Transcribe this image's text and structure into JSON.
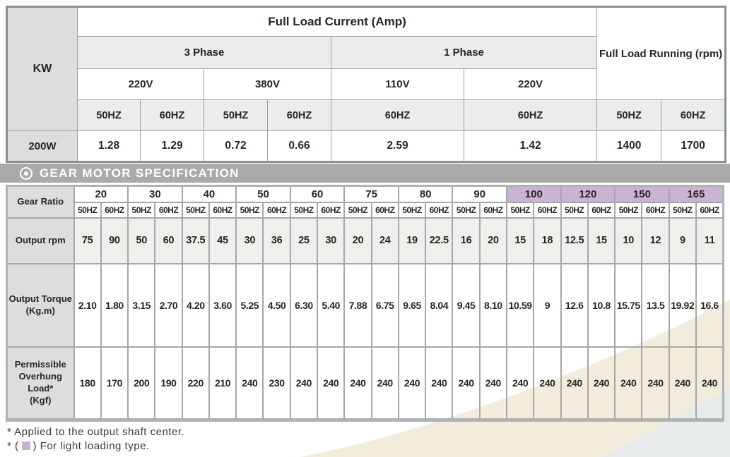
{
  "colors": {
    "lavender": "#cbb3d3",
    "header_bar_gray": "#a9abab",
    "beige_swoosh": "#f2ecdc",
    "bluegray_swoosh": "#e8ebeb"
  },
  "full_load_table": {
    "kw_label": "KW",
    "title": "Full Load Current (Amp)",
    "running_label": "Full Load Running (rpm)",
    "phase3_label": "3 Phase",
    "phase1_label": "1 Phase",
    "voltages": [
      "220V",
      "380V",
      "110V",
      "220V"
    ],
    "hz": [
      "50HZ",
      "60HZ",
      "50HZ",
      "60HZ",
      "60HZ",
      "60HZ",
      "50HZ",
      "60HZ"
    ],
    "model": "200W",
    "values": [
      "1.28",
      "1.29",
      "0.72",
      "0.66",
      "2.59",
      "1.42",
      "1400",
      "1700"
    ]
  },
  "spec_header": {
    "title": "GEAR MOTOR SPECIFICATION"
  },
  "gear_table": {
    "row_headers": {
      "ratio": "Gear Ratio",
      "rpm": "Output rpm",
      "torque": "Output Torque\n(Kg.m)",
      "load": "Permissible\nOverhung Load*\n(Kgf)"
    },
    "hz_labels": [
      "50HZ",
      "60HZ"
    ],
    "ratios": [
      {
        "label": "20",
        "light": false
      },
      {
        "label": "30",
        "light": false
      },
      {
        "label": "40",
        "light": false
      },
      {
        "label": "50",
        "light": false
      },
      {
        "label": "60",
        "light": false
      },
      {
        "label": "75",
        "light": false
      },
      {
        "label": "80",
        "light": false
      },
      {
        "label": "90",
        "light": false
      },
      {
        "label": "100",
        "light": true
      },
      {
        "label": "120",
        "light": true
      },
      {
        "label": "150",
        "light": true
      },
      {
        "label": "165",
        "light": true
      }
    ],
    "rpm": [
      "75",
      "90",
      "50",
      "60",
      "37.5",
      "45",
      "30",
      "36",
      "25",
      "30",
      "20",
      "24",
      "19",
      "22.5",
      "16",
      "20",
      "15",
      "18",
      "12.5",
      "15",
      "10",
      "12",
      "9",
      "11"
    ],
    "torque": [
      "2.10",
      "1.80",
      "3.15",
      "2.70",
      "4.20",
      "3.60",
      "5.25",
      "4.50",
      "6.30",
      "5.40",
      "7.88",
      "6.75",
      "9.65",
      "8.04",
      "9.45",
      "8.10",
      "10.59",
      "9",
      "12.6",
      "10.8",
      "15.75",
      "13.5",
      "19.92",
      "16.6"
    ],
    "load": [
      "180",
      "170",
      "200",
      "190",
      "220",
      "210",
      "240",
      "230",
      "240",
      "240",
      "240",
      "240",
      "240",
      "240",
      "240",
      "240",
      "240",
      "240",
      "240",
      "240",
      "240",
      "240",
      "240",
      "240"
    ]
  },
  "footnotes": {
    "line1": "* Applied to the output shaft center.",
    "line2_prefix": "* (",
    "line2_suffix": ") For light loading type."
  }
}
